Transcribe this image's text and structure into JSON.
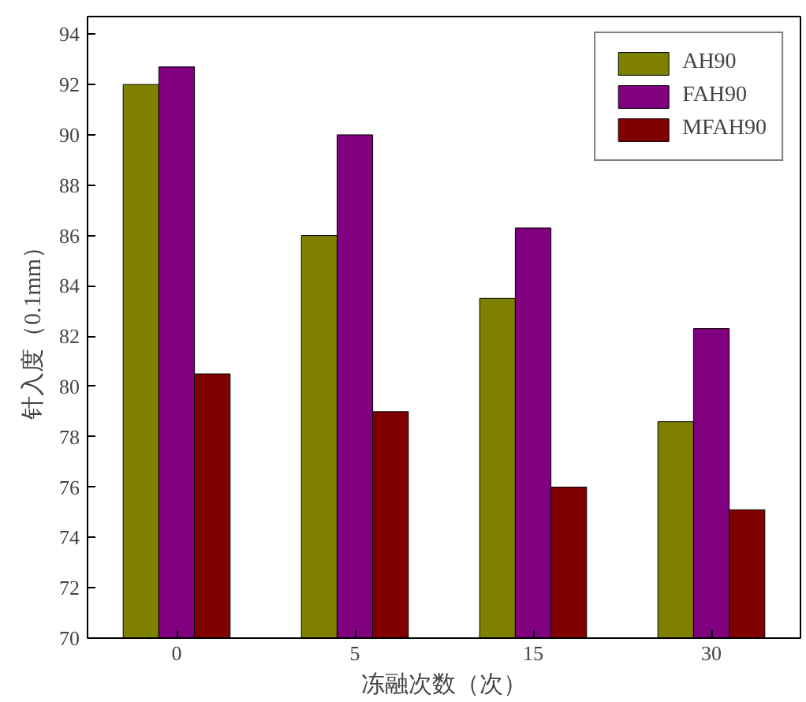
{
  "chart_data": {
    "type": "bar",
    "xlabel": "冻融次数（次）",
    "ylabel": "针入度（0.1mm）",
    "categories": [
      "0",
      "5",
      "15",
      "30"
    ],
    "series": [
      {
        "name": "AH90",
        "color": "#808000",
        "values": [
          92,
          86,
          83.5,
          78.6
        ]
      },
      {
        "name": "FAH90",
        "color": "#800080",
        "values": [
          92.7,
          90,
          86.3,
          82.3
        ]
      },
      {
        "name": "MFAH90",
        "color": "#800000",
        "values": [
          80.5,
          79,
          76,
          75.1
        ]
      }
    ],
    "ylim": [
      70,
      94.7
    ],
    "yticks": [
      70,
      72,
      74,
      76,
      78,
      80,
      82,
      84,
      86,
      88,
      90,
      92,
      94
    ],
    "grid": false,
    "legend": "top right"
  }
}
